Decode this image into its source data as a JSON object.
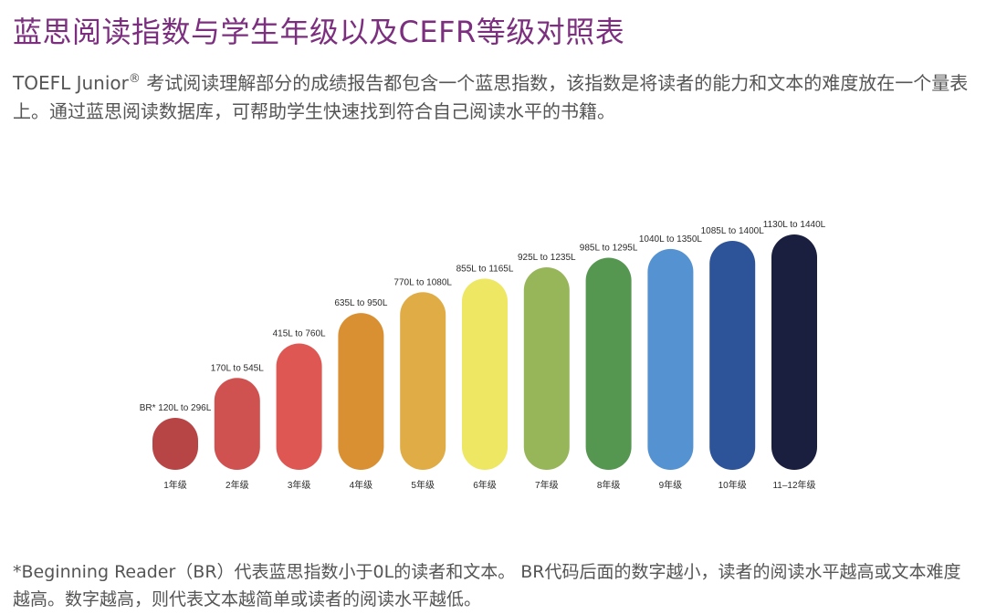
{
  "title": "蓝思阅读指数与学生年级以及CEFR等级对照表",
  "intro": {
    "prefix": "TOEFL Junior",
    "registered_mark": "®",
    "text": " 考试阅读理解部分的成绩报告都包含一个蓝思指数，该指数是将读者的能力和文本的难度放在一个量表上。通过蓝思阅读数据库，可帮助学生快速找到符合自己阅读水平的书籍。"
  },
  "footnote": "*Beginning Reader（BR）代表蓝思指数小于0L的读者和文本。 BR代码后面的数字越小，读者的阅读水平越高或文本难度越高。数字越高，则代表文本越简单或读者的阅读水平越低。",
  "chart_data": {
    "type": "bar",
    "categories": [
      "1年级",
      "2年级",
      "3年级",
      "4年级",
      "5年级",
      "6年级",
      "7年级",
      "8年级",
      "9年级",
      "10年级",
      "11–12年级"
    ],
    "range_labels": [
      "BR* 120L to 296L",
      "170L to 545L",
      "415L to 760L",
      "635L to 950L",
      "770L to 1080L",
      "855L to 1165L",
      "925L to 1235L",
      "985L to 1295L",
      "1040L to 1350L",
      "1085L to 1400L",
      "1130L to 1440L"
    ],
    "min_values": [
      -120,
      170,
      415,
      635,
      770,
      855,
      925,
      985,
      1040,
      1085,
      1130
    ],
    "max_values": [
      296,
      545,
      760,
      950,
      1080,
      1165,
      1235,
      1295,
      1350,
      1400,
      1440
    ],
    "colors": [
      "#b84545",
      "#cf5150",
      "#de5753",
      "#d99032",
      "#e0ac46",
      "#eee763",
      "#97b65a",
      "#559651",
      "#5592d1",
      "#2d5499",
      "#1a1e3f"
    ],
    "title": "",
    "xlabel": "",
    "ylabel": ""
  }
}
